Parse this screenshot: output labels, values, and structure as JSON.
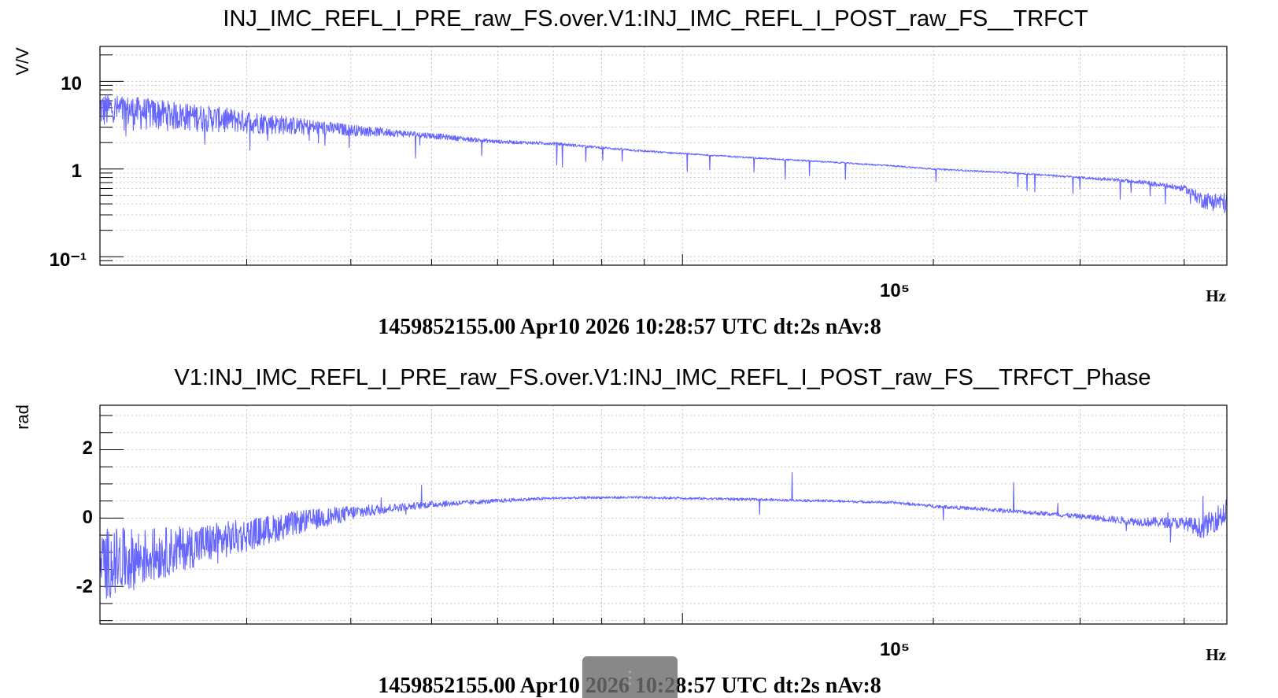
{
  "chart_data": [
    {
      "type": "line",
      "title": "INJ_IMC_REFL_I_PRE_raw_FS.over.V1:INJ_IMC_REFL_I_POST_raw_FS__TRFCT",
      "ylabel": "V/V",
      "xunit": "Hz",
      "yscale": "log",
      "xscale": "log",
      "xlim": [
        20000,
        450000
      ],
      "ylim": [
        0.08,
        25
      ],
      "ytick_labels": [
        "10",
        "1",
        "10⁻¹"
      ],
      "yticks": [
        10,
        1,
        0.1
      ],
      "xtick_label": "10⁵",
      "xticks": [
        100000
      ],
      "grid": true,
      "color": "#6666ff",
      "series": [
        {
          "x": [
            20000,
            22000,
            25000,
            30000,
            35000,
            40000,
            45000,
            50000,
            55000,
            60000,
            65000,
            70000,
            80000,
            90000,
            100000,
            120000,
            150000,
            180000,
            200000,
            250000,
            300000,
            350000,
            400000,
            420000,
            450000
          ],
          "y": [
            5.0,
            4.7,
            4.2,
            3.6,
            3.1,
            2.8,
            2.6,
            2.4,
            2.2,
            2.05,
            2.0,
            1.95,
            1.75,
            1.6,
            1.5,
            1.35,
            1.2,
            1.08,
            1.0,
            0.9,
            0.8,
            0.72,
            0.6,
            0.45,
            0.42
          ],
          "noise": [
            0.45,
            0.42,
            0.36,
            0.3,
            0.22,
            0.15,
            0.1,
            0.08,
            0.06,
            0.05,
            0.04,
            0.04,
            0.03,
            0.03,
            0.02,
            0.02,
            0.02,
            0.02,
            0.02,
            0.02,
            0.03,
            0.05,
            0.08,
            0.2,
            0.28
          ]
        }
      ]
    },
    {
      "type": "line",
      "title": "V1:INJ_IMC_REFL_I_PRE_raw_FS.over.V1:INJ_IMC_REFL_I_POST_raw_FS__TRFCT_Phase",
      "ylabel": "rad",
      "xunit": "Hz",
      "yscale": "linear",
      "xscale": "log",
      "xlim": [
        20000,
        450000
      ],
      "ylim": [
        -3.1,
        3.3
      ],
      "ytick_labels": [
        "2",
        "0",
        "-2"
      ],
      "yticks": [
        2,
        0,
        -2
      ],
      "xtick_label": "10⁵",
      "xticks": [
        100000
      ],
      "grid": true,
      "color": "#6666ff",
      "series": [
        {
          "x": [
            20000,
            22000,
            25000,
            30000,
            35000,
            40000,
            45000,
            50000,
            55000,
            60000,
            65000,
            70000,
            80000,
            90000,
            100000,
            120000,
            150000,
            180000,
            200000,
            250000,
            300000,
            350000,
            400000,
            420000,
            450000
          ],
          "y": [
            -1.35,
            -1.2,
            -0.9,
            -0.5,
            -0.1,
            0.15,
            0.3,
            0.4,
            0.45,
            0.5,
            0.55,
            0.58,
            0.6,
            0.6,
            0.58,
            0.55,
            0.5,
            0.45,
            0.35,
            0.2,
            0.05,
            -0.1,
            -0.15,
            -0.3,
            0.2
          ],
          "noise": [
            0.9,
            0.75,
            0.55,
            0.4,
            0.28,
            0.18,
            0.1,
            0.08,
            0.06,
            0.05,
            0.04,
            0.03,
            0.03,
            0.03,
            0.03,
            0.03,
            0.03,
            0.03,
            0.04,
            0.05,
            0.06,
            0.1,
            0.15,
            0.25,
            0.35
          ]
        }
      ]
    }
  ],
  "info_line_1": "1459852155.00 Apr10 2026 10:28:57 UTC dt:2s nAv:8",
  "info_line_2": "1459852155.00 Apr10 2026 10:28:57 UTC dt:2s nAv:8"
}
